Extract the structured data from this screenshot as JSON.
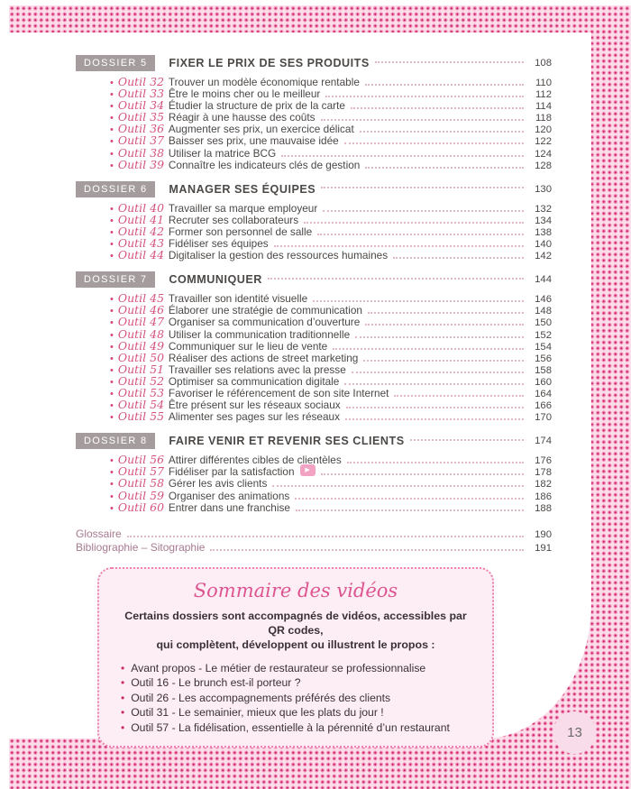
{
  "page": {
    "number": "13"
  },
  "icons": {
    "toc_bullet": "•",
    "video_bullet": "•",
    "play": "▶"
  },
  "colors": {
    "accent_pink": "#d6457f",
    "pattern_dot": "#c92063",
    "pattern_bg": "#fbdeea",
    "badge_bg": "#a59c9e",
    "text_dark": "#4b4846",
    "box_bg": "#fdeef5",
    "box_border": "#ee7fae",
    "muted_mauve": "#a87a90"
  },
  "toc": {
    "sections": [
      {
        "badge": "DOSSIER 5",
        "title": "FIXER LE PRIX DE SES PRODUITS",
        "page": "108",
        "items": [
          {
            "label": "Outil 32",
            "text": "Trouver un modèle économique rentable",
            "page": "110"
          },
          {
            "label": "Outil 33",
            "text": "Être le moins cher ou le meilleur",
            "page": "112"
          },
          {
            "label": "Outil 34",
            "text": "Étudier la structure de prix de la carte",
            "page": "114"
          },
          {
            "label": "Outil 35",
            "text": "Réagir à une hausse des coûts",
            "page": "118"
          },
          {
            "label": "Outil 36",
            "text": "Augmenter ses prix, un exercice délicat",
            "page": "120"
          },
          {
            "label": "Outil 37",
            "text": "Baisser ses prix, une mauvaise idée",
            "page": "122"
          },
          {
            "label": "Outil 38",
            "text": "Utiliser la matrice BCG",
            "page": "124"
          },
          {
            "label": "Outil 39",
            "text": "Connaître les indicateurs clés de gestion",
            "page": "128"
          }
        ]
      },
      {
        "badge": "DOSSIER 6",
        "title": "MANAGER SES ÉQUIPES",
        "page": "130",
        "items": [
          {
            "label": "Outil 40",
            "text": "Travailler sa marque employeur",
            "page": "132"
          },
          {
            "label": "Outil 41",
            "text": "Recruter ses collaborateurs",
            "page": "134"
          },
          {
            "label": "Outil 42",
            "text": "Former son personnel de salle",
            "page": "138"
          },
          {
            "label": "Outil 43",
            "text": "Fidéliser ses équipes",
            "page": "140"
          },
          {
            "label": "Outil 44",
            "text": "Digitaliser la gestion des ressources humaines",
            "page": "142"
          }
        ]
      },
      {
        "badge": "DOSSIER 7",
        "title": "COMMUNIQUER",
        "page": "144",
        "items": [
          {
            "label": "Outil 45",
            "text": "Travailler son identité visuelle",
            "page": "146"
          },
          {
            "label": "Outil 46",
            "text": "Élaborer une stratégie de communication",
            "page": "148"
          },
          {
            "label": "Outil 47",
            "text": "Organiser sa communication d’ouverture",
            "page": "150"
          },
          {
            "label": "Outil 48",
            "text": "Utiliser la communication traditionnelle",
            "page": "152"
          },
          {
            "label": "Outil 49",
            "text": "Communiquer sur le lieu de vente",
            "page": "154"
          },
          {
            "label": "Outil 50",
            "text": "Réaliser des actions de street marketing",
            "page": "156"
          },
          {
            "label": "Outil 51",
            "text": "Travailler ses relations avec la presse",
            "page": "158"
          },
          {
            "label": "Outil 52",
            "text": "Optimiser sa communication digitale",
            "page": "160"
          },
          {
            "label": "Outil 53",
            "text": "Favoriser le référencement de son site Internet",
            "page": "164"
          },
          {
            "label": "Outil 54",
            "text": "Être présent sur les réseaux sociaux",
            "page": "166"
          },
          {
            "label": "Outil 55",
            "text": "Alimenter ses pages sur les réseaux",
            "page": "170"
          }
        ]
      },
      {
        "badge": "DOSSIER 8",
        "title": "FAIRE VENIR ET REVENIR SES CLIENTS",
        "page": "174",
        "items": [
          {
            "label": "Outil 56",
            "text": "Attirer différentes cibles de clientèles",
            "page": "176"
          },
          {
            "label": "Outil 57",
            "text": "Fidéliser par la satisfaction",
            "page": "178",
            "video": true
          },
          {
            "label": "Outil 58",
            "text": "Gérer les avis clients",
            "page": "182"
          },
          {
            "label": "Outil 59",
            "text": "Organiser des animations",
            "page": "186"
          },
          {
            "label": "Outil 60",
            "text": "Entrer dans une franchise",
            "page": "188"
          }
        ]
      }
    ],
    "extras": [
      {
        "text": "Glossaire",
        "page": "190"
      },
      {
        "text": "Bibliographie – Sitographie",
        "page": "191"
      }
    ]
  },
  "video_box": {
    "title": "Sommaire des vidéos",
    "intro_line1": "Certains dossiers sont accompagnés de vidéos, accessibles par QR codes,",
    "intro_line2": "qui complètent, développent ou illustrent le propos :",
    "items": [
      "Avant propos - Le métier de restaurateur se professionnalise",
      "Outil 16 - Le brunch est-il porteur ?",
      "Outil 26 - Les accompagnements préférés des clients",
      "Outil 31 - Le semainier, mieux que les plats du jour !",
      "Outil 57 - La fidélisation, essentielle à la pérennité d’un restaurant"
    ]
  }
}
